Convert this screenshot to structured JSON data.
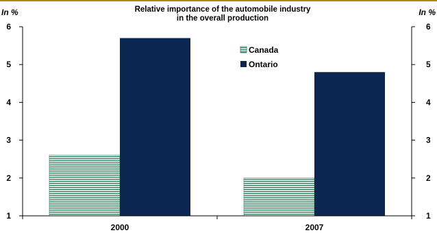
{
  "chart_data": {
    "type": "bar",
    "title": [
      "Relative importance of the automobile industry",
      "in the overall production"
    ],
    "ylabel_left": "In %",
    "ylabel_right": "In %",
    "categories": [
      "2000",
      "2007"
    ],
    "series": [
      {
        "name": "Canada",
        "values": [
          2.6,
          2.0
        ],
        "color": "#2e7d5b",
        "fill": "horizontal-stripes"
      },
      {
        "name": "Ontario",
        "values": [
          5.7,
          4.8
        ],
        "color": "#0b2650",
        "fill": "solid"
      }
    ],
    "ylim": [
      1,
      6
    ],
    "yticks": [
      1,
      2,
      3,
      4,
      5,
      6
    ],
    "legend_position": "top-center",
    "grid": false,
    "colors": {
      "top_rule": "#b8860b",
      "axis": "#000000"
    }
  }
}
